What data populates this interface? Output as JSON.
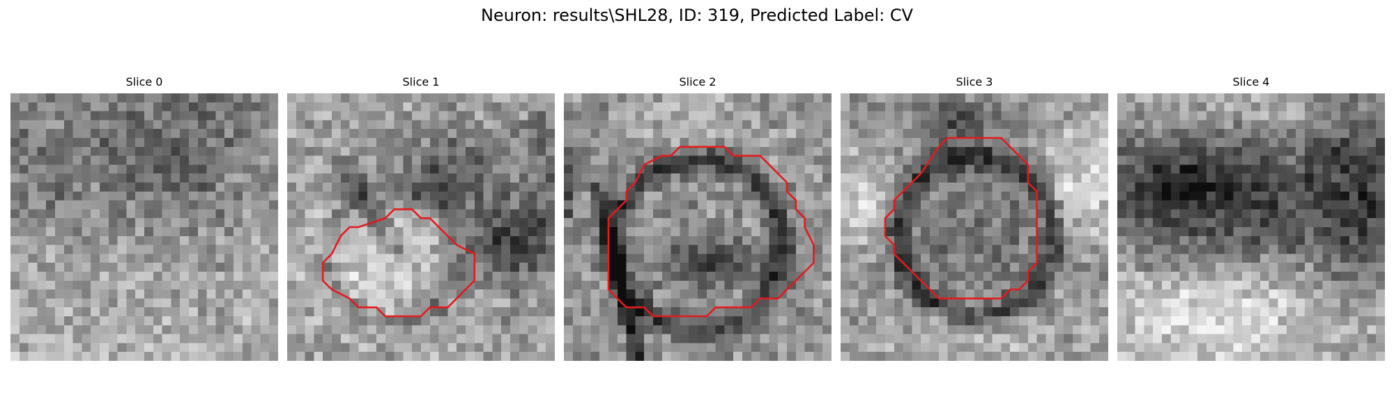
{
  "figure": {
    "title": "Neuron: results\\SHL28, ID: 319, Predicted Label: CV"
  },
  "panels": [
    {
      "title": "Slice 0",
      "has_contour": false
    },
    {
      "title": "Slice 1",
      "has_contour": true
    },
    {
      "title": "Slice 2",
      "has_contour": true
    },
    {
      "title": "Slice 3",
      "has_contour": true
    },
    {
      "title": "Slice 4",
      "has_contour": false
    }
  ],
  "colors": {
    "contour": "#e41a1c",
    "background": "#ffffff"
  },
  "image": {
    "grid_size": 30,
    "colormap": "grayscale"
  }
}
